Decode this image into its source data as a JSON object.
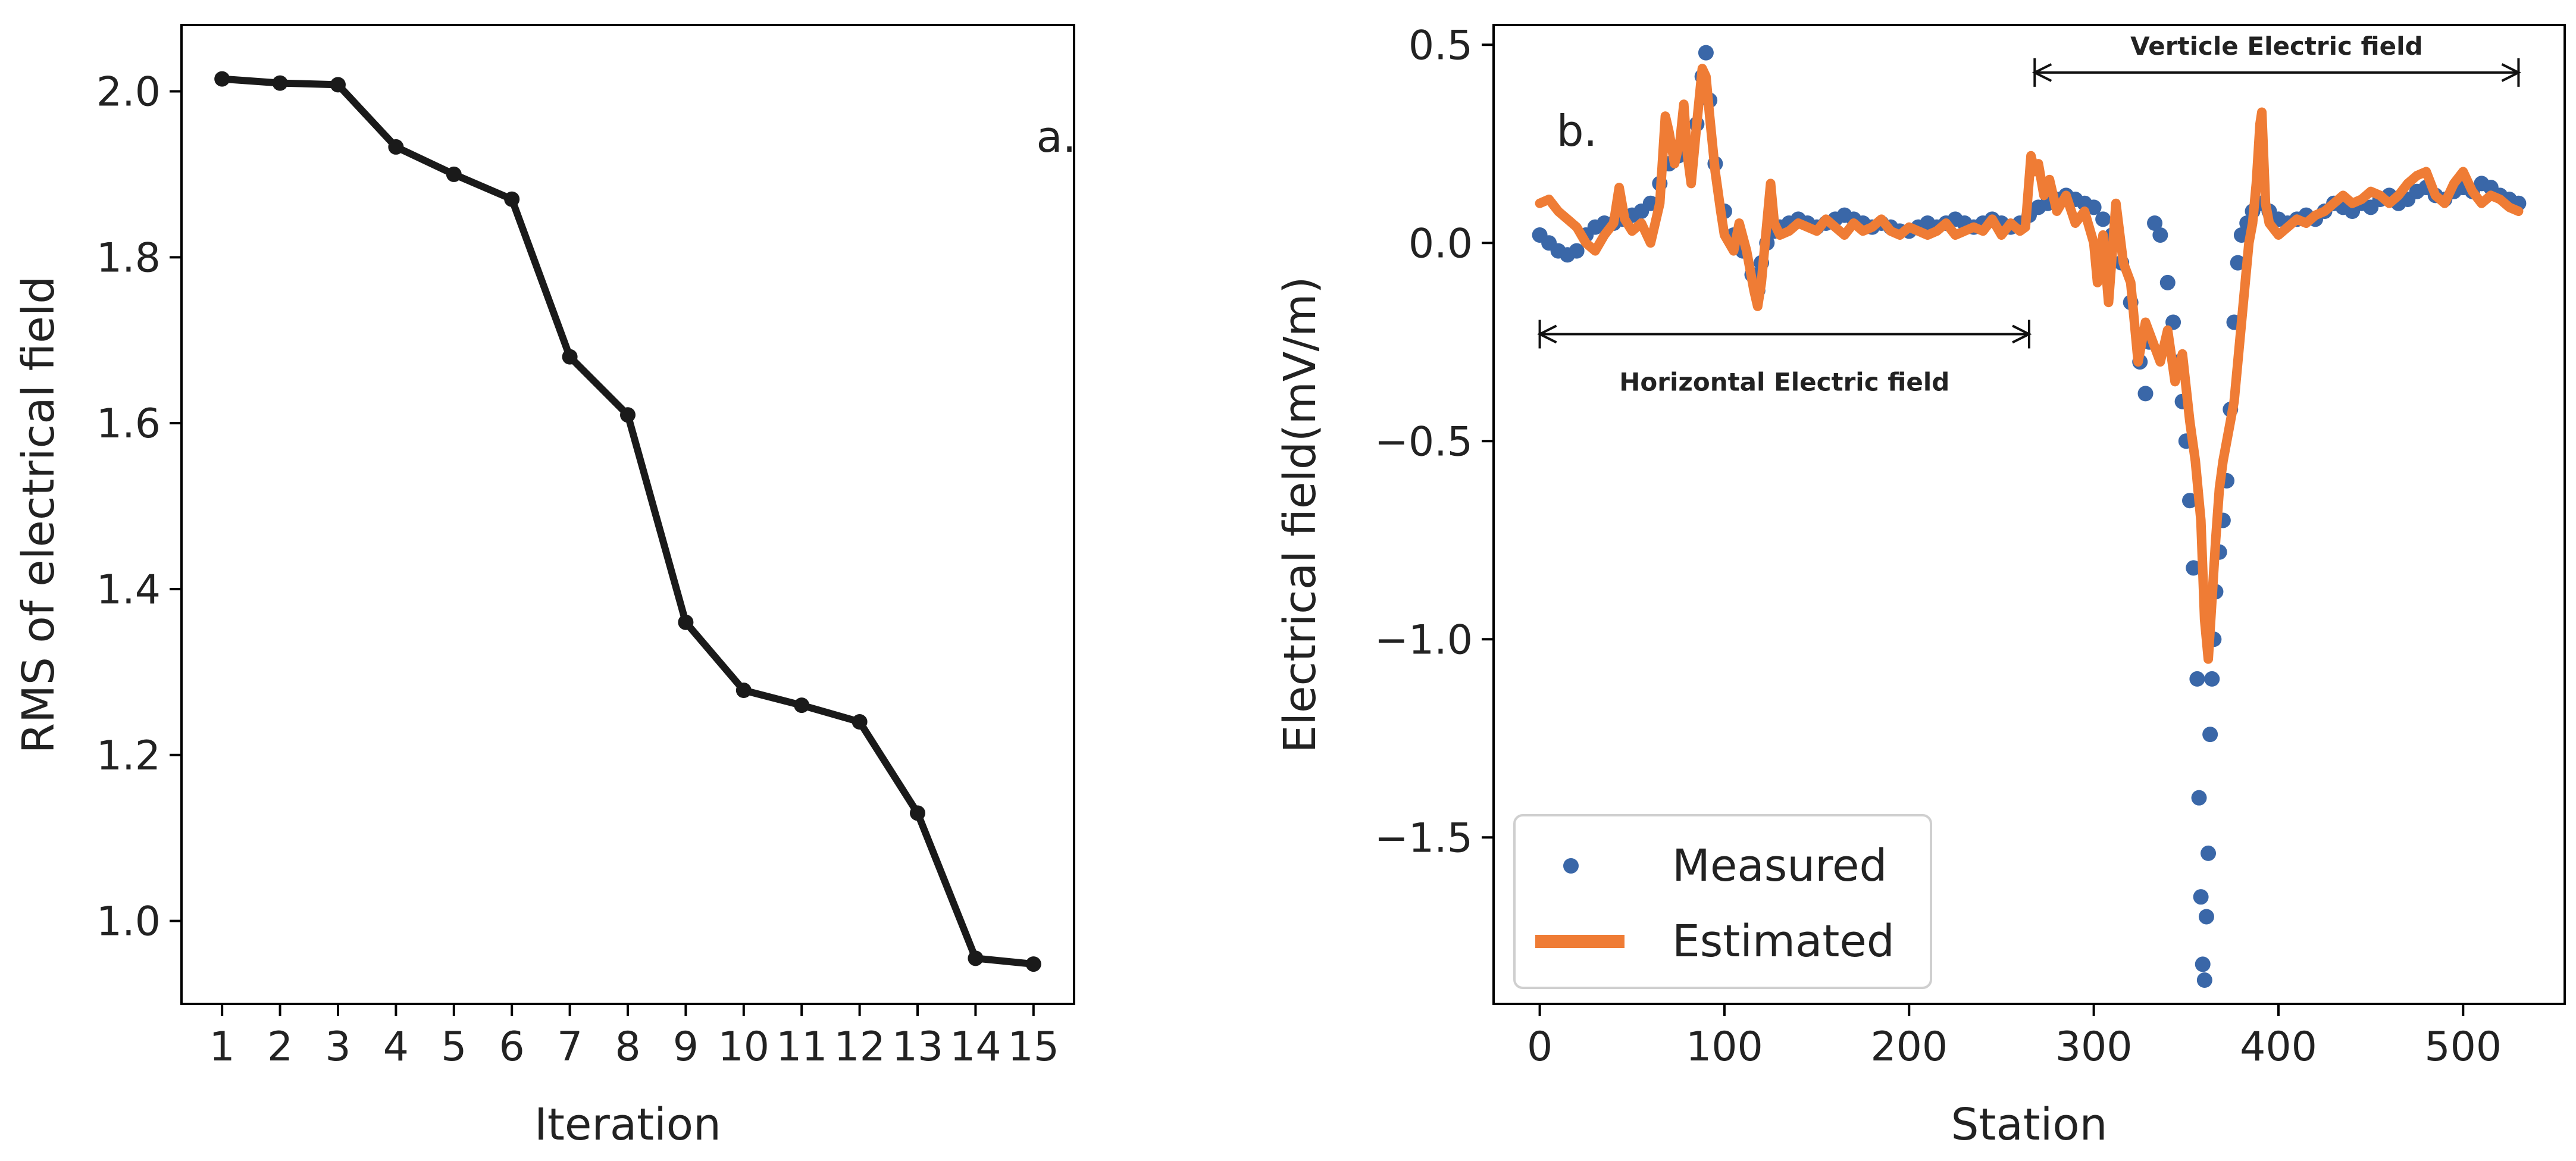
{
  "colors": {
    "line_a": "#1a1a1a",
    "measured": "#3a67a8",
    "estimated": "#ef7c35",
    "axis": "#000000"
  },
  "chart_data": [
    {
      "type": "line",
      "panel_label": "a.",
      "xlabel": "Iteration",
      "ylabel": "RMS of electrical field",
      "xlim": [
        0.3,
        15.7
      ],
      "ylim": [
        0.9,
        2.08
      ],
      "x": [
        1,
        2,
        3,
        4,
        5,
        6,
        7,
        8,
        9,
        10,
        11,
        12,
        13,
        14,
        15
      ],
      "values": [
        2.015,
        2.01,
        2.008,
        1.933,
        1.9,
        1.87,
        1.68,
        1.61,
        1.36,
        1.278,
        1.26,
        1.24,
        1.13,
        0.955,
        0.948
      ],
      "xticks": [
        {
          "value": 1,
          "label": "1"
        },
        {
          "value": 2,
          "label": "2"
        },
        {
          "value": 3,
          "label": "3"
        },
        {
          "value": 4,
          "label": "4"
        },
        {
          "value": 5,
          "label": "5"
        },
        {
          "value": 6,
          "label": "6"
        },
        {
          "value": 7,
          "label": "7"
        },
        {
          "value": 8,
          "label": "8"
        },
        {
          "value": 9,
          "label": "9"
        },
        {
          "value": 10,
          "label": "10"
        },
        {
          "value": 11,
          "label": "11"
        },
        {
          "value": 12,
          "label": "12"
        },
        {
          "value": 13,
          "label": "13"
        },
        {
          "value": 14,
          "label": "14"
        },
        {
          "value": 15,
          "label": "15"
        }
      ],
      "yticks": [
        {
          "value": 1.0,
          "label": "1.0"
        },
        {
          "value": 1.2,
          "label": "1.2"
        },
        {
          "value": 1.4,
          "label": "1.4"
        },
        {
          "value": 1.6,
          "label": "1.6"
        },
        {
          "value": 1.8,
          "label": "1.8"
        },
        {
          "value": 2.0,
          "label": "2.0"
        }
      ]
    },
    {
      "type": "scatter+line",
      "panel_label": "b.",
      "xlabel": "Station",
      "ylabel": "Electrical field(mV/m)",
      "xlim": [
        -25,
        555
      ],
      "ylim": [
        -1.92,
        0.55
      ],
      "xticks": [
        {
          "value": 0,
          "label": "0"
        },
        {
          "value": 100,
          "label": "100"
        },
        {
          "value": 200,
          "label": "200"
        },
        {
          "value": 300,
          "label": "300"
        },
        {
          "value": 400,
          "label": "400"
        },
        {
          "value": 500,
          "label": "500"
        }
      ],
      "yticks": [
        {
          "value": 0.5,
          "label": "0.5"
        },
        {
          "value": 0.0,
          "label": "0.0"
        },
        {
          "value": -0.5,
          "label": "−0.5"
        },
        {
          "value": -1.0,
          "label": "−1.0"
        },
        {
          "value": -1.5,
          "label": "−1.5"
        }
      ],
      "annotations": [
        {
          "text": "Horizontal Electric field",
          "x_start": 0,
          "x_end": 265,
          "y": -0.23
        },
        {
          "text": "Verticle Electric field",
          "x_start": 268,
          "x_end": 530,
          "y": 0.43
        }
      ],
      "legend": {
        "position": "lower-left",
        "entries": [
          "Measured",
          "Estimated"
        ]
      },
      "series": [
        {
          "name": "Measured",
          "style": "points",
          "x": [
            0,
            5,
            10,
            15,
            20,
            25,
            30,
            35,
            40,
            45,
            50,
            55,
            60,
            65,
            70,
            75,
            80,
            85,
            88,
            90,
            92,
            95,
            100,
            105,
            110,
            115,
            118,
            120,
            123,
            127,
            130,
            135,
            140,
            145,
            150,
            155,
            160,
            165,
            170,
            175,
            180,
            185,
            190,
            195,
            200,
            205,
            210,
            215,
            220,
            225,
            230,
            235,
            240,
            245,
            250,
            255,
            260,
            265,
            270,
            275,
            280,
            285,
            290,
            295,
            300,
            305,
            310,
            315,
            320,
            325,
            328,
            330,
            333,
            336,
            340,
            343,
            346,
            348,
            350,
            352,
            354,
            356,
            357,
            358,
            359,
            360,
            361,
            362,
            363,
            364,
            365,
            366,
            368,
            370,
            372,
            374,
            376,
            378,
            380,
            383,
            386,
            390,
            395,
            400,
            405,
            410,
            415,
            420,
            425,
            430,
            435,
            440,
            445,
            450,
            455,
            460,
            465,
            470,
            475,
            480,
            485,
            490,
            495,
            500,
            505,
            510,
            515,
            520,
            525,
            530
          ],
          "values": [
            0.02,
            0.0,
            -0.02,
            -0.03,
            -0.02,
            0.02,
            0.04,
            0.05,
            0.05,
            0.06,
            0.07,
            0.08,
            0.1,
            0.15,
            0.2,
            0.22,
            0.25,
            0.3,
            0.42,
            0.48,
            0.36,
            0.2,
            0.08,
            0.02,
            -0.02,
            -0.08,
            -0.12,
            -0.05,
            0.0,
            0.03,
            0.04,
            0.05,
            0.06,
            0.05,
            0.04,
            0.05,
            0.06,
            0.07,
            0.06,
            0.05,
            0.04,
            0.05,
            0.04,
            0.03,
            0.03,
            0.04,
            0.05,
            0.04,
            0.05,
            0.06,
            0.05,
            0.04,
            0.05,
            0.06,
            0.05,
            0.04,
            0.05,
            0.07,
            0.09,
            0.1,
            0.11,
            0.12,
            0.11,
            0.1,
            0.09,
            0.06,
            0.02,
            -0.05,
            -0.15,
            -0.3,
            -0.38,
            -0.25,
            0.05,
            0.02,
            -0.1,
            -0.2,
            -0.3,
            -0.4,
            -0.5,
            -0.65,
            -0.82,
            -1.1,
            -1.4,
            -1.65,
            -1.82,
            -1.86,
            -1.7,
            -1.54,
            -1.24,
            -1.1,
            -1.0,
            -0.88,
            -0.78,
            -0.7,
            -0.6,
            -0.42,
            -0.2,
            -0.05,
            0.02,
            0.05,
            0.08,
            0.1,
            0.08,
            0.06,
            0.05,
            0.06,
            0.07,
            0.06,
            0.08,
            0.1,
            0.09,
            0.08,
            0.1,
            0.09,
            0.11,
            0.12,
            0.1,
            0.11,
            0.13,
            0.14,
            0.12,
            0.11,
            0.13,
            0.14,
            0.13,
            0.15,
            0.14,
            0.12,
            0.11,
            0.1
          ]
        },
        {
          "name": "Estimated",
          "style": "line",
          "x": [
            0,
            5,
            10,
            15,
            20,
            25,
            30,
            35,
            40,
            43,
            46,
            50,
            55,
            60,
            65,
            68,
            70,
            73,
            76,
            78,
            80,
            82,
            85,
            88,
            90,
            92,
            95,
            98,
            100,
            105,
            108,
            112,
            116,
            118,
            120,
            122,
            125,
            127,
            130,
            135,
            140,
            145,
            150,
            155,
            160,
            165,
            170,
            175,
            180,
            185,
            190,
            195,
            200,
            205,
            210,
            215,
            220,
            225,
            230,
            235,
            240,
            245,
            250,
            255,
            260,
            263,
            266,
            268,
            270,
            273,
            276,
            280,
            285,
            290,
            295,
            300,
            302,
            305,
            308,
            312,
            316,
            320,
            324,
            328,
            332,
            336,
            340,
            344,
            348,
            352,
            355,
            358,
            360,
            362,
            364,
            366,
            368,
            370,
            372,
            374,
            376,
            378,
            380,
            382,
            384,
            386,
            388,
            390,
            391,
            393,
            395,
            400,
            405,
            410,
            415,
            420,
            425,
            430,
            435,
            440,
            445,
            450,
            455,
            460,
            465,
            470,
            475,
            480,
            485,
            490,
            495,
            500,
            505,
            510,
            515,
            520,
            525,
            530
          ],
          "values": [
            0.1,
            0.11,
            0.08,
            0.06,
            0.04,
            0.0,
            -0.02,
            0.02,
            0.05,
            0.14,
            0.06,
            0.03,
            0.05,
            0.0,
            0.1,
            0.32,
            0.28,
            0.2,
            0.26,
            0.35,
            0.22,
            0.15,
            0.3,
            0.44,
            0.42,
            0.32,
            0.18,
            0.08,
            0.02,
            -0.02,
            0.05,
            -0.02,
            -0.12,
            -0.16,
            -0.1,
            0.0,
            0.15,
            0.05,
            0.02,
            0.03,
            0.05,
            0.04,
            0.03,
            0.06,
            0.04,
            0.02,
            0.05,
            0.03,
            0.04,
            0.06,
            0.03,
            0.02,
            0.04,
            0.03,
            0.02,
            0.03,
            0.05,
            0.02,
            0.03,
            0.04,
            0.03,
            0.06,
            0.02,
            0.05,
            0.03,
            0.04,
            0.22,
            0.18,
            0.2,
            0.12,
            0.16,
            0.08,
            0.12,
            0.05,
            0.08,
            0.0,
            -0.1,
            0.02,
            -0.15,
            0.1,
            -0.05,
            -0.1,
            -0.3,
            -0.2,
            -0.25,
            -0.3,
            -0.22,
            -0.35,
            -0.28,
            -0.45,
            -0.55,
            -0.7,
            -0.95,
            -1.05,
            -0.9,
            -0.75,
            -0.62,
            -0.55,
            -0.5,
            -0.45,
            -0.4,
            -0.3,
            -0.2,
            -0.1,
            0.0,
            0.05,
            0.15,
            0.3,
            0.33,
            0.1,
            0.05,
            0.02,
            0.04,
            0.06,
            0.05,
            0.07,
            0.08,
            0.1,
            0.12,
            0.1,
            0.11,
            0.13,
            0.12,
            0.1,
            0.12,
            0.15,
            0.17,
            0.18,
            0.12,
            0.1,
            0.15,
            0.18,
            0.13,
            0.1,
            0.12,
            0.11,
            0.09,
            0.08
          ]
        }
      ]
    }
  ]
}
